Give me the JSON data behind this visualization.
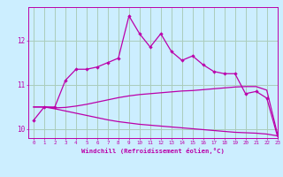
{
  "xlabel": "Windchill (Refroidissement éolien,°C)",
  "background_color": "#cceeff",
  "grid_color": "#aaccbb",
  "line_color": "#bb00aa",
  "x_values": [
    0,
    1,
    2,
    3,
    4,
    5,
    6,
    7,
    8,
    9,
    10,
    11,
    12,
    13,
    14,
    15,
    16,
    17,
    18,
    19,
    20,
    21,
    22,
    23
  ],
  "line1": [
    10.2,
    10.5,
    10.5,
    11.1,
    11.35,
    11.35,
    11.4,
    11.5,
    11.6,
    12.55,
    12.15,
    11.85,
    12.15,
    11.75,
    11.55,
    11.65,
    11.45,
    11.3,
    11.25,
    11.25,
    10.8,
    10.85,
    10.7,
    9.85
  ],
  "line2": [
    10.5,
    10.5,
    10.48,
    10.49,
    10.52,
    10.56,
    10.61,
    10.66,
    10.71,
    10.75,
    10.78,
    10.8,
    10.82,
    10.84,
    10.86,
    10.87,
    10.89,
    10.91,
    10.93,
    10.95,
    10.96,
    10.96,
    10.88,
    9.9
  ],
  "line3": [
    10.5,
    10.5,
    10.46,
    10.41,
    10.36,
    10.31,
    10.26,
    10.21,
    10.17,
    10.14,
    10.11,
    10.09,
    10.07,
    10.05,
    10.03,
    10.01,
    9.99,
    9.97,
    9.95,
    9.93,
    9.92,
    9.91,
    9.89,
    9.85
  ],
  "ylim": [
    9.8,
    12.75
  ],
  "xlim": [
    -0.5,
    23
  ],
  "yticks": [
    10,
    11,
    12
  ],
  "xticks": [
    0,
    1,
    2,
    3,
    4,
    5,
    6,
    7,
    8,
    9,
    10,
    11,
    12,
    13,
    14,
    15,
    16,
    17,
    18,
    19,
    20,
    21,
    22,
    23
  ],
  "figsize": [
    3.2,
    2.0
  ],
  "dpi": 100
}
